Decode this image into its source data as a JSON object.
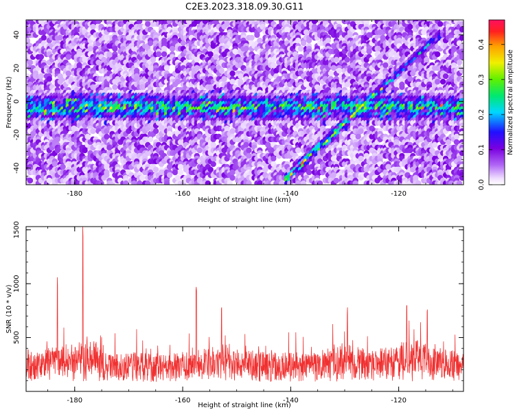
{
  "title": "C2E3.2023.318.09.30.G11",
  "chart_data": [
    {
      "type": "heatmap",
      "xlabel": "Height of straight line (km)",
      "ylabel": "Frequency (Hz)",
      "xlim": [
        -189,
        -108
      ],
      "ylim": [
        -50,
        49
      ],
      "xticks": [
        -180,
        -160,
        -140,
        -120
      ],
      "yticks": [
        -40,
        -20,
        0,
        20,
        40
      ],
      "colorbar": {
        "label": "Normalized spectral amplitude",
        "range": [
          0.0,
          0.47
        ],
        "ticks": [
          0.0,
          0.1,
          0.2,
          0.3,
          0.4
        ],
        "colormap": "rainbow-purple-to-red"
      },
      "features": [
        {
          "description": "horizontal band",
          "x_range": [
            -189,
            -108
          ],
          "frequency": -4,
          "amplitude": 0.3
        },
        {
          "description": "diagonal streak",
          "x_start": -141,
          "freq_start": -48,
          "x_end": -122,
          "freq_end": 10,
          "amplitude": 0.35
        },
        {
          "description": "diagonal streak",
          "x_start": -122,
          "freq_start": 10,
          "x_end": -112,
          "freq_end": 40,
          "amplitude": 0.2
        }
      ]
    },
    {
      "type": "line",
      "xlabel": "Height of straight line (km)",
      "ylabel": "SNR (10 * v/v)",
      "xlim": [
        -189,
        -108
      ],
      "ylim": [
        0,
        1530
      ],
      "xticks": [
        -180,
        -160,
        -140,
        -120
      ],
      "yticks": [
        500,
        1000,
        1500
      ],
      "color": "#f03030",
      "baseline": 250,
      "peaks": [
        {
          "x": -178.5,
          "y": 1530
        },
        {
          "x": -183.2,
          "y": 1060
        },
        {
          "x": -157.5,
          "y": 970
        },
        {
          "x": -152.8,
          "y": 780
        },
        {
          "x": -129.5,
          "y": 780
        },
        {
          "x": -118.5,
          "y": 800
        },
        {
          "x": -114.7,
          "y": 760
        }
      ]
    }
  ]
}
